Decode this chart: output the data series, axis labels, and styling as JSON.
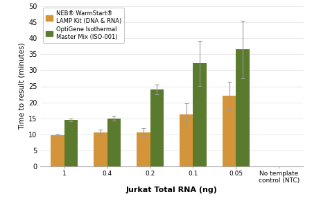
{
  "categories": [
    "1",
    "0.4",
    "0.2",
    "0.1",
    "0.05",
    "No template\ncontrol (NTC)"
  ],
  "neb_values": [
    9.8,
    10.6,
    10.7,
    16.2,
    22.0,
    null
  ],
  "neb_errors": [
    0.4,
    0.9,
    1.1,
    3.5,
    4.5,
    null
  ],
  "optigene_values": [
    14.5,
    15.0,
    24.0,
    32.2,
    36.5,
    null
  ],
  "optigene_errors": [
    0.5,
    0.8,
    1.5,
    7.0,
    9.0,
    null
  ],
  "neb_color": "#D4953A",
  "optigene_color": "#5A7A2E",
  "xlabel": "Jurkat Total RNA (ng)",
  "ylabel": "Time to result (minutes)",
  "ylim": [
    0,
    50
  ],
  "yticks": [
    0,
    5,
    10,
    15,
    20,
    25,
    30,
    35,
    40,
    45,
    50
  ],
  "legend_neb": "NEB® WarmStart®\nLAMP Kit (DNA & RNA)",
  "legend_optigene": "OptiGene Isothermal\nMaster Mix (ISO-001)",
  "bar_width": 0.32,
  "error_capsize": 2,
  "background_color": "#ffffff",
  "grid_color": "#e0e0e0"
}
